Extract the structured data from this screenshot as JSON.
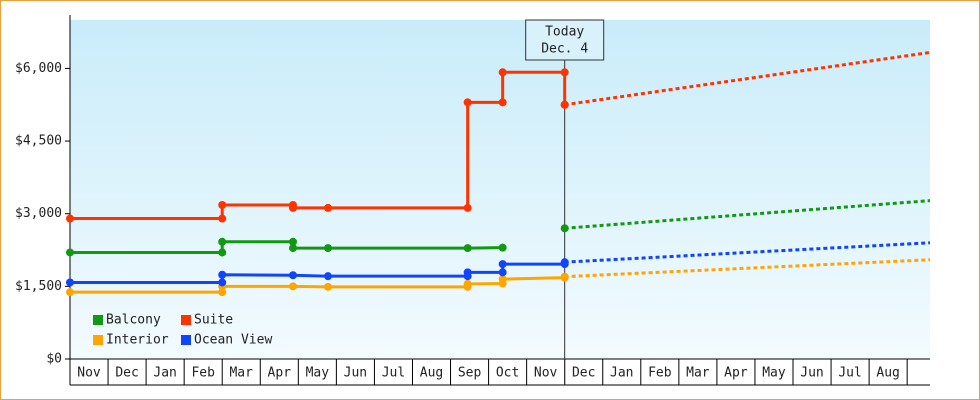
{
  "chart_data": {
    "type": "step-line",
    "categories": [
      "Nov",
      "Dec",
      "Jan",
      "Feb",
      "Mar",
      "Apr",
      "May",
      "Jun",
      "Jul",
      "Aug",
      "Sep",
      "Oct",
      "Nov",
      "Dec",
      "Jan",
      "Feb",
      "Mar",
      "Apr",
      "May",
      "Jun",
      "Jul",
      "Aug"
    ],
    "xlim": [
      0,
      22.6
    ],
    "ylim": [
      0,
      7000
    ],
    "yticks": [
      {
        "value": 0,
        "label": "$0"
      },
      {
        "value": 1500,
        "label": "$1,500"
      },
      {
        "value": 3000,
        "label": "$3,000"
      },
      {
        "value": 4500,
        "label": "$4,500"
      },
      {
        "value": 6000,
        "label": "$6,000"
      }
    ],
    "grid": false,
    "legend": "bottom-left",
    "annotation": {
      "x": 13,
      "lines": [
        "Today",
        "Dec. 4"
      ]
    },
    "series": [
      {
        "name": "Balcony",
        "color": "#119911",
        "x": [
          0,
          4,
          4,
          5.86,
          5.86,
          6.78,
          10.45,
          11.37
        ],
        "values": [
          2200,
          2200,
          2420,
          2420,
          2290,
          2290,
          2290,
          2300
        ]
      },
      {
        "name": "Suite",
        "color": "#ff3300",
        "x": [
          0,
          4,
          4,
          5.86,
          5.86,
          6.78,
          10.45,
          10.45,
          11.37,
          11.37,
          13,
          13
        ],
        "values": [
          2900,
          2900,
          3180,
          3180,
          3120,
          3120,
          3120,
          5300,
          5300,
          5920,
          5920,
          5250
        ]
      },
      {
        "name": "Interior",
        "color": "#ffa500",
        "x": [
          0,
          4,
          4,
          5.86,
          6.78,
          10.45,
          10.45,
          11.37,
          11.37,
          13
        ],
        "values": [
          1380,
          1380,
          1500,
          1500,
          1490,
          1490,
          1550,
          1560,
          1650,
          1680
        ]
      },
      {
        "name": "Ocean View",
        "color": "#1144ff",
        "x": [
          0,
          4,
          4,
          5.86,
          6.78,
          10.45,
          10.45,
          11.37,
          11.37,
          13
        ],
        "values": [
          1580,
          1580,
          1740,
          1730,
          1710,
          1710,
          1790,
          1790,
          1960,
          1960
        ]
      }
    ],
    "projections": [
      {
        "color": "#119911",
        "x": [
          13,
          22.6
        ],
        "values": [
          2700,
          3270
        ]
      },
      {
        "color": "#ff3300",
        "x": [
          13,
          22.6
        ],
        "values": [
          5250,
          6330
        ]
      },
      {
        "color": "#ffa500",
        "x": [
          13,
          22.6
        ],
        "values": [
          1700,
          2050
        ]
      },
      {
        "color": "#1144ff",
        "x": [
          13,
          22.6
        ],
        "values": [
          2000,
          2400
        ]
      }
    ]
  }
}
